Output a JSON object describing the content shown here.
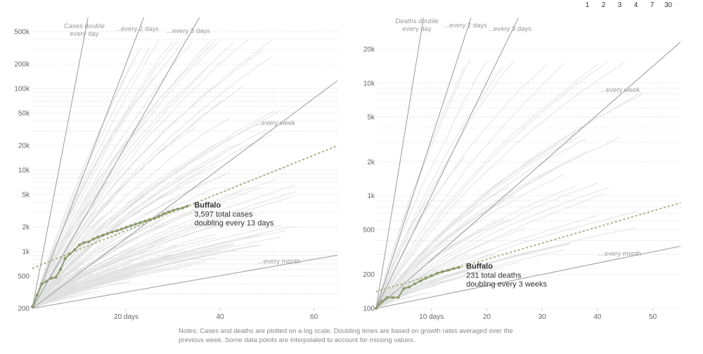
{
  "rolling_options": [
    "1",
    "2",
    "3",
    "4",
    "7",
    "30"
  ],
  "notes": "Notes: Cases and deaths are plotted on a log scale. Doubling times are based on growth rates averaged over the previous week. Some data points are interpolated to account for missing values.",
  "colors": {
    "highlight": "#8a9a6b",
    "highlight_dash": "#a9b48a",
    "background_lines": "#e0e0e0",
    "reference_lines": "#999999",
    "gridlines": "#dddddd"
  },
  "chart_data": [
    {
      "type": "line",
      "scale": "log",
      "ylim": [
        200,
        500000
      ],
      "xlim": [
        0,
        65
      ],
      "x_ticks": [
        {
          "value": 20,
          "label": "20 days"
        },
        {
          "value": 40,
          "label": "40"
        },
        {
          "value": 60,
          "label": "60"
        }
      ],
      "y_ticks": [
        {
          "value": 200,
          "label": "200"
        },
        {
          "value": 500,
          "label": "500"
        },
        {
          "value": 1000,
          "label": "1k"
        },
        {
          "value": 2000,
          "label": "2k"
        },
        {
          "value": 5000,
          "label": "5k"
        },
        {
          "value": 10000,
          "label": "10k"
        },
        {
          "value": 20000,
          "label": "20k"
        },
        {
          "value": 50000,
          "label": "50k"
        },
        {
          "value": 100000,
          "label": "100k"
        },
        {
          "value": 200000,
          "label": "200k"
        },
        {
          "value": 500000,
          "label": "500k"
        }
      ],
      "reference_lines": [
        {
          "label_lines": [
            "Cases double",
            "every day"
          ],
          "doubling_days": 1
        },
        {
          "label_lines": [
            "...every 2 days"
          ],
          "doubling_days": 2
        },
        {
          "label_lines": [
            "...every 3 days"
          ],
          "doubling_days": 3
        },
        {
          "label_lines": [
            "...every week"
          ],
          "doubling_days": 7
        },
        {
          "label_lines": [
            "...every month"
          ],
          "doubling_days": 30
        }
      ],
      "highlight": {
        "name": "Buffalo",
        "lines": [
          "3,597 total cases",
          "doubling every 13 days"
        ],
        "doubling_days": 13,
        "x": [
          0,
          1,
          2,
          3,
          4,
          5,
          6,
          7,
          8,
          9,
          10,
          11,
          12,
          13,
          14,
          15,
          16,
          17,
          18,
          19,
          20,
          21,
          22,
          23,
          24,
          25,
          26,
          27,
          28,
          29,
          30,
          31,
          32,
          33
        ],
        "y": [
          210,
          290,
          400,
          430,
          470,
          480,
          600,
          820,
          930,
          1050,
          1200,
          1280,
          1310,
          1420,
          1500,
          1580,
          1650,
          1730,
          1800,
          1880,
          1970,
          2060,
          2160,
          2260,
          2360,
          2460,
          2550,
          2700,
          2900,
          3050,
          3200,
          3320,
          3420,
          3597
        ]
      }
    },
    {
      "type": "line",
      "scale": "log",
      "ylim": [
        100,
        20000
      ],
      "xlim": [
        0,
        55
      ],
      "x_ticks": [
        {
          "value": 10,
          "label": "10 days"
        },
        {
          "value": 20,
          "label": "20"
        },
        {
          "value": 30,
          "label": "30"
        },
        {
          "value": 40,
          "label": "40"
        },
        {
          "value": 50,
          "label": "50"
        }
      ],
      "y_ticks": [
        {
          "value": 100,
          "label": "100"
        },
        {
          "value": 200,
          "label": "200"
        },
        {
          "value": 500,
          "label": "500"
        },
        {
          "value": 1000,
          "label": "1k"
        },
        {
          "value": 2000,
          "label": "2k"
        },
        {
          "value": 5000,
          "label": "5k"
        },
        {
          "value": 10000,
          "label": "10k"
        },
        {
          "value": 20000,
          "label": "20k"
        }
      ],
      "reference_lines": [
        {
          "label_lines": [
            "Deaths double",
            "every day"
          ],
          "doubling_days": 1
        },
        {
          "label_lines": [
            "...every 2 days"
          ],
          "doubling_days": 2
        },
        {
          "label_lines": [
            "...every 3 days"
          ],
          "doubling_days": 3
        },
        {
          "label_lines": [
            "...every week"
          ],
          "doubling_days": 7
        },
        {
          "label_lines": [
            "...every month"
          ],
          "doubling_days": 30
        }
      ],
      "highlight": {
        "name": "Buffalo",
        "lines": [
          "231 total deaths",
          "doubling every 3 weeks"
        ],
        "doubling_days": 21,
        "x": [
          0,
          1,
          2,
          3,
          4,
          5,
          6,
          7,
          8,
          9,
          10,
          11,
          12,
          13,
          14,
          15
        ],
        "y": [
          100,
          115,
          125,
          125,
          125,
          150,
          155,
          165,
          175,
          185,
          195,
          205,
          212,
          218,
          225,
          231
        ]
      }
    }
  ]
}
